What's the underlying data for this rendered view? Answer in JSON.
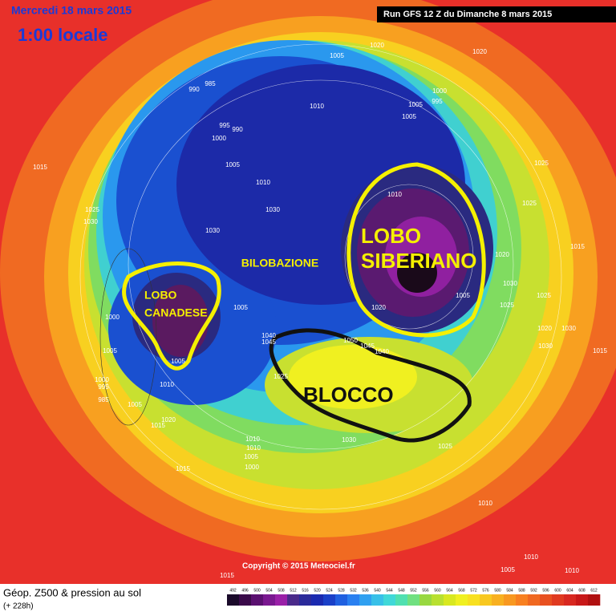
{
  "header": {
    "date": "Mercredi 18 mars 2015",
    "time": "1:00 locale",
    "run": "Run GFS 12 Z du Dimanche 8 mars 2015"
  },
  "annotations": [
    "LOBO",
    "SIBERIANO",
    "LOBO",
    "CANADESE",
    "BILOBAZIONE",
    "BLOCCO"
  ],
  "isobars": [
    985,
    990,
    1005,
    1020,
    1020,
    1010,
    1000,
    995,
    1005,
    1005,
    995,
    990,
    1000,
    1015,
    1005,
    1010,
    1025,
    1025,
    1030,
    1030,
    1030,
    1010,
    1025,
    1015,
    1020,
    1030,
    1025,
    1025,
    1005,
    1000,
    1005,
    1020,
    1040,
    1045,
    1050,
    1045,
    1040,
    1005,
    1005,
    1010,
    1000,
    995,
    985,
    1005,
    1020,
    1015,
    1025,
    1010,
    1010,
    1005,
    1000,
    1030,
    1025,
    1015,
    1010,
    1030,
    1020,
    1030,
    1015,
    1010,
    1005,
    1010,
    1015
  ],
  "footer": {
    "copyright": "Copyright © 2015 Meteociel.fr"
  },
  "legend": {
    "title": "Géop. Z500 & pression au sol",
    "lead": "(+ 228h)",
    "scale": [
      492,
      496,
      500,
      504,
      508,
      512,
      516,
      520,
      524,
      528,
      532,
      536,
      540,
      544,
      548,
      552,
      556,
      560,
      564,
      568,
      572,
      576,
      580,
      584,
      588,
      592,
      596,
      600,
      604,
      608,
      612
    ],
    "colors": [
      "#1a0a2a",
      "#3a0a4a",
      "#5a1070",
      "#7a1890",
      "#9a20a8",
      "#4a2a8a",
      "#2a2a9a",
      "#1a2ab0",
      "#1a40c8",
      "#2060e0",
      "#2a80f0",
      "#30a0f0",
      "#38c0e8",
      "#40d8d8",
      "#50e0b0",
      "#70e080",
      "#98d840",
      "#b8e030",
      "#d8e820",
      "#f0f020",
      "#f8e020",
      "#f8c820",
      "#f8b020",
      "#f89820",
      "#f88020",
      "#f06820",
      "#e85020",
      "#e03a20",
      "#d82820",
      "#c81818",
      "#b01010"
    ]
  }
}
